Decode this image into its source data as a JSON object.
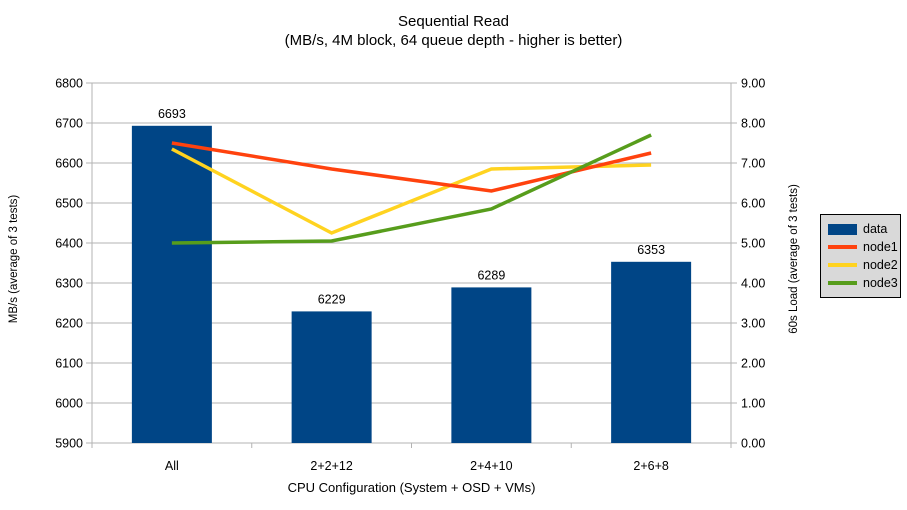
{
  "chart_data": {
    "type": "bar",
    "title": "Sequential Read",
    "subtitle": "(MB/s, 4M block, 64 queue depth - higher is better)",
    "categories": [
      "All",
      "2+2+12",
      "2+4+10",
      "2+6+8"
    ],
    "xlabel": "CPU Configuration (System + OSD + VMs)",
    "left_axis": {
      "title": "MB/s (average of 3 tests)",
      "min": 5900,
      "max": 6800,
      "step": 100
    },
    "right_axis": {
      "title": "60s Load (average of 3 tests)",
      "min": 0,
      "max": 9,
      "step": 1,
      "tick_decimals": 2
    },
    "series": [
      {
        "name": "data",
        "type": "bar",
        "axis": "left",
        "color": "#004586",
        "values": [
          6693,
          6229,
          6289,
          6353
        ],
        "value_labels": [
          "6693",
          "6229",
          "6289",
          "6353"
        ]
      },
      {
        "name": "node1",
        "type": "line",
        "axis": "right",
        "color": "#FF420E",
        "values": [
          7.5,
          6.85,
          6.3,
          7.25
        ]
      },
      {
        "name": "node2",
        "type": "line",
        "axis": "right",
        "color": "#FFD320",
        "values": [
          7.35,
          5.25,
          6.85,
          6.95
        ]
      },
      {
        "name": "node3",
        "type": "line",
        "axis": "right",
        "color": "#579D1C",
        "values": [
          5.0,
          5.05,
          5.85,
          7.7
        ]
      }
    ],
    "legend": {
      "position": "right",
      "entries": [
        "data",
        "node1",
        "node2",
        "node3"
      ]
    },
    "grid": true,
    "colors": {
      "background": "#ffffff",
      "grid": "#b3b3b3",
      "axis": "#b3b3b3",
      "text": "#000000",
      "legend_background": "#d9d9d9",
      "legend_border": "#000000"
    }
  }
}
